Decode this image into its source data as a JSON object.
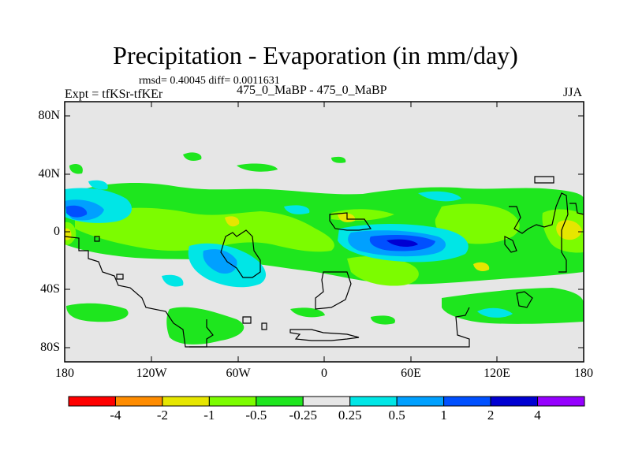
{
  "figure": {
    "title": "Precipitation - Evaporation (in mm/day)",
    "stats": "rmsd= 0.40045 diff= 0.0011631",
    "experiment": "Expt = tfKSr-tfKEr",
    "difference_label": "475_0_MaBP - 475_0_MaBP",
    "season": "JJA"
  },
  "chart_data": {
    "type": "heatmap",
    "title": "Precipitation - Evaporation (in mm/day)",
    "units": "mm/day",
    "projection": "cylindrical equidistant",
    "x_range": [
      -180,
      180
    ],
    "y_range": [
      -90,
      90
    ],
    "x_tick_labels": [
      "180",
      "120W",
      "60W",
      "0",
      "60E",
      "120E",
      "180"
    ],
    "y_tick_labels": [
      "80N",
      "40N",
      "0",
      "40S",
      "80S"
    ],
    "contour_levels": [
      "-4",
      "-2",
      "-1",
      "-0.5",
      "-0.25",
      "0.25",
      "0.5",
      "1",
      "2",
      "4"
    ],
    "colors": [
      "#ff0000",
      "#ff8c00",
      "#e6e600",
      "#7cfc00",
      "#1ee61e",
      "#e6e6e6",
      "#00e6e6",
      "#00a0ff",
      "#0050ff",
      "#0000d2",
      "#9600ff"
    ]
  }
}
